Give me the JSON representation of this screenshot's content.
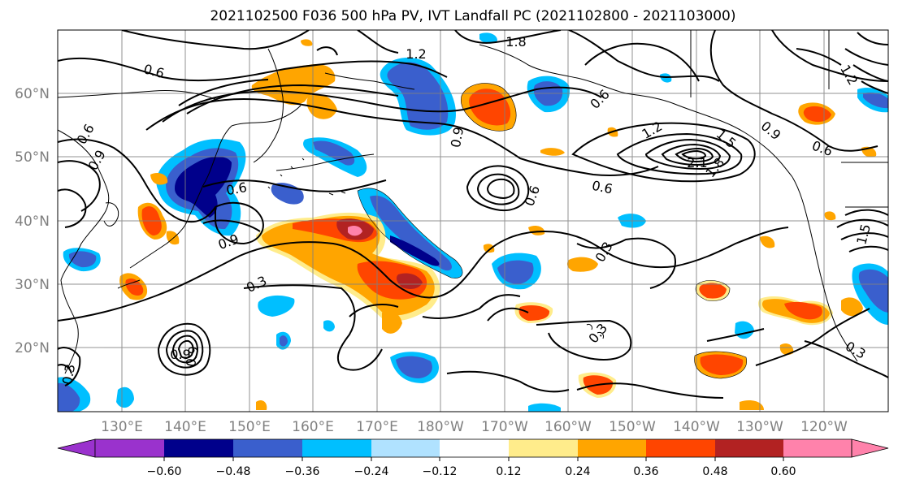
{
  "title": "2021102500 F036 500 hPa PV, IVT Landfall PC (2021102800 - 2021103000)",
  "map": {
    "lat_labels": [
      "60°N",
      "50°N",
      "40°N",
      "30°N",
      "20°N"
    ],
    "lon_labels": [
      "130°E",
      "140°E",
      "150°E",
      "160°E",
      "170°E",
      "180°W",
      "170°W",
      "160°W",
      "150°W",
      "140°W",
      "130°W",
      "120°W"
    ],
    "contour_labels": [
      "0.6",
      "1.2",
      "1.8",
      "0.6",
      "0.9",
      "0.6",
      "0.9",
      "0.6",
      "1.2",
      "1.5",
      "2.1",
      "1.8",
      "0.6",
      "0.6",
      "0.3",
      "0.3",
      "0.3",
      "0.3",
      "0.9",
      "0.9",
      "0.3",
      "0.6",
      "0.9",
      "1.2",
      "0.9",
      "1.5"
    ],
    "colors": {
      "neg_060": "#9a32cd",
      "neg_048": "#00008b",
      "neg_036": "#3a5fcd",
      "neg_024": "#00bfff",
      "neg_012": "#b0e2ff",
      "neutral": "#ffffff",
      "pos_012": "#ffec8b",
      "pos_024": "#ffa500",
      "pos_036": "#ff4500",
      "pos_048": "#b22222",
      "pos_060": "#ff82ab"
    }
  },
  "colorbar": {
    "ticks": [
      "−0.60",
      "−0.48",
      "−0.36",
      "−0.24",
      "−0.12",
      "0.12",
      "0.24",
      "0.36",
      "0.48",
      "0.60"
    ],
    "colors": [
      "#9a32cd",
      "#00008b",
      "#3a5fcd",
      "#00bfff",
      "#b0e2ff",
      "#ffffff",
      "#ffec8b",
      "#ffa500",
      "#ff4500",
      "#b22222",
      "#ff82ab"
    ]
  }
}
